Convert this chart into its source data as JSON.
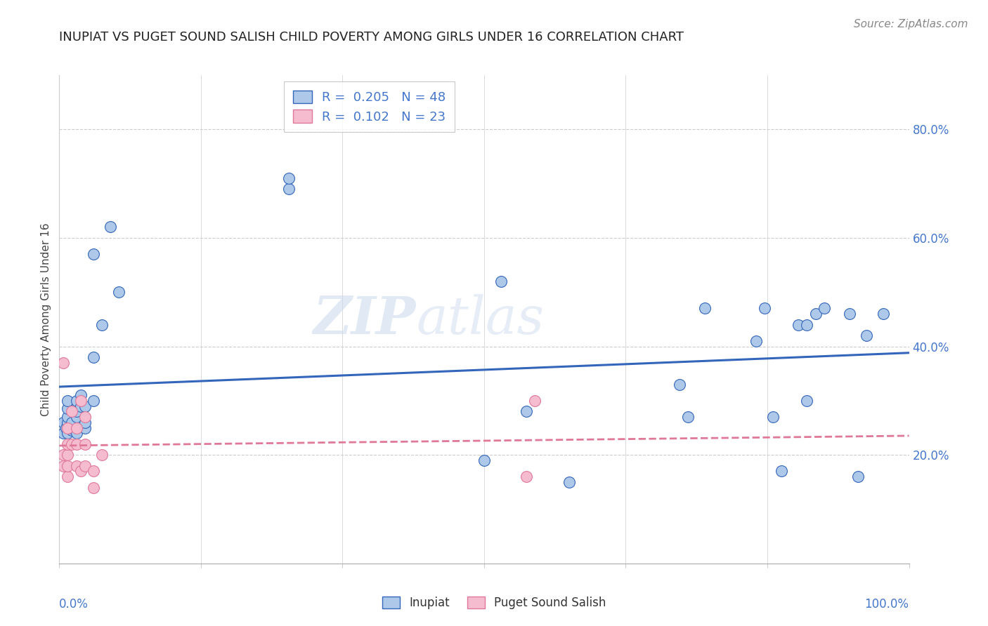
{
  "title": "INUPIAT VS PUGET SOUND SALISH CHILD POVERTY AMONG GIRLS UNDER 16 CORRELATION CHART",
  "source": "Source: ZipAtlas.com",
  "ylabel": "Child Poverty Among Girls Under 16",
  "legend_inupiat": "Inupiat",
  "legend_puget": "Puget Sound Salish",
  "r_inupiat": "0.205",
  "n_inupiat": "48",
  "r_puget": "0.102",
  "n_puget": "23",
  "inupiat_color": "#adc8e8",
  "puget_color": "#f5bcd0",
  "inupiat_line_color": "#3366bb",
  "puget_line_color": "#e07898",
  "watermark_left": "ZIP",
  "watermark_right": "atlas",
  "background_color": "#ffffff",
  "inupiat_x": [
    0.005,
    0.005,
    0.008,
    0.01,
    0.01,
    0.01,
    0.01,
    0.01,
    0.015,
    0.015,
    0.015,
    0.02,
    0.02,
    0.02,
    0.02,
    0.025,
    0.025,
    0.03,
    0.03,
    0.03,
    0.04,
    0.04,
    0.04,
    0.05,
    0.06,
    0.07,
    0.27,
    0.27,
    0.5,
    0.52,
    0.55,
    0.6,
    0.73,
    0.74,
    0.76,
    0.82,
    0.83,
    0.84,
    0.85,
    0.87,
    0.88,
    0.88,
    0.89,
    0.9,
    0.93,
    0.94,
    0.95,
    0.97
  ],
  "inupiat_y": [
    0.24,
    0.26,
    0.25,
    0.24,
    0.26,
    0.27,
    0.285,
    0.3,
    0.245,
    0.25,
    0.26,
    0.24,
    0.27,
    0.28,
    0.3,
    0.29,
    0.31,
    0.25,
    0.26,
    0.29,
    0.3,
    0.38,
    0.57,
    0.44,
    0.62,
    0.5,
    0.69,
    0.71,
    0.19,
    0.52,
    0.28,
    0.15,
    0.33,
    0.27,
    0.47,
    0.41,
    0.47,
    0.27,
    0.17,
    0.44,
    0.3,
    0.44,
    0.46,
    0.47,
    0.46,
    0.16,
    0.42,
    0.46
  ],
  "puget_x": [
    0.005,
    0.005,
    0.005,
    0.01,
    0.01,
    0.01,
    0.01,
    0.01,
    0.015,
    0.015,
    0.02,
    0.02,
    0.02,
    0.025,
    0.025,
    0.03,
    0.03,
    0.03,
    0.04,
    0.04,
    0.05,
    0.55,
    0.56
  ],
  "puget_y": [
    0.18,
    0.2,
    0.37,
    0.16,
    0.18,
    0.2,
    0.22,
    0.25,
    0.22,
    0.28,
    0.18,
    0.22,
    0.25,
    0.17,
    0.3,
    0.18,
    0.22,
    0.27,
    0.14,
    0.17,
    0.2,
    0.16,
    0.3
  ],
  "ylim_min": 0.0,
  "ylim_max": 0.9,
  "xlim_min": 0.0,
  "xlim_max": 1.0,
  "ytick_vals": [
    0.2,
    0.4,
    0.6,
    0.8
  ],
  "ytick_labels": [
    "20.0%",
    "40.0%",
    "60.0%",
    "80.0%"
  ],
  "grid_color": "#cccccc",
  "tick_color": "#4477cc",
  "title_fontsize": 13,
  "source_fontsize": 11,
  "marker_size": 130
}
